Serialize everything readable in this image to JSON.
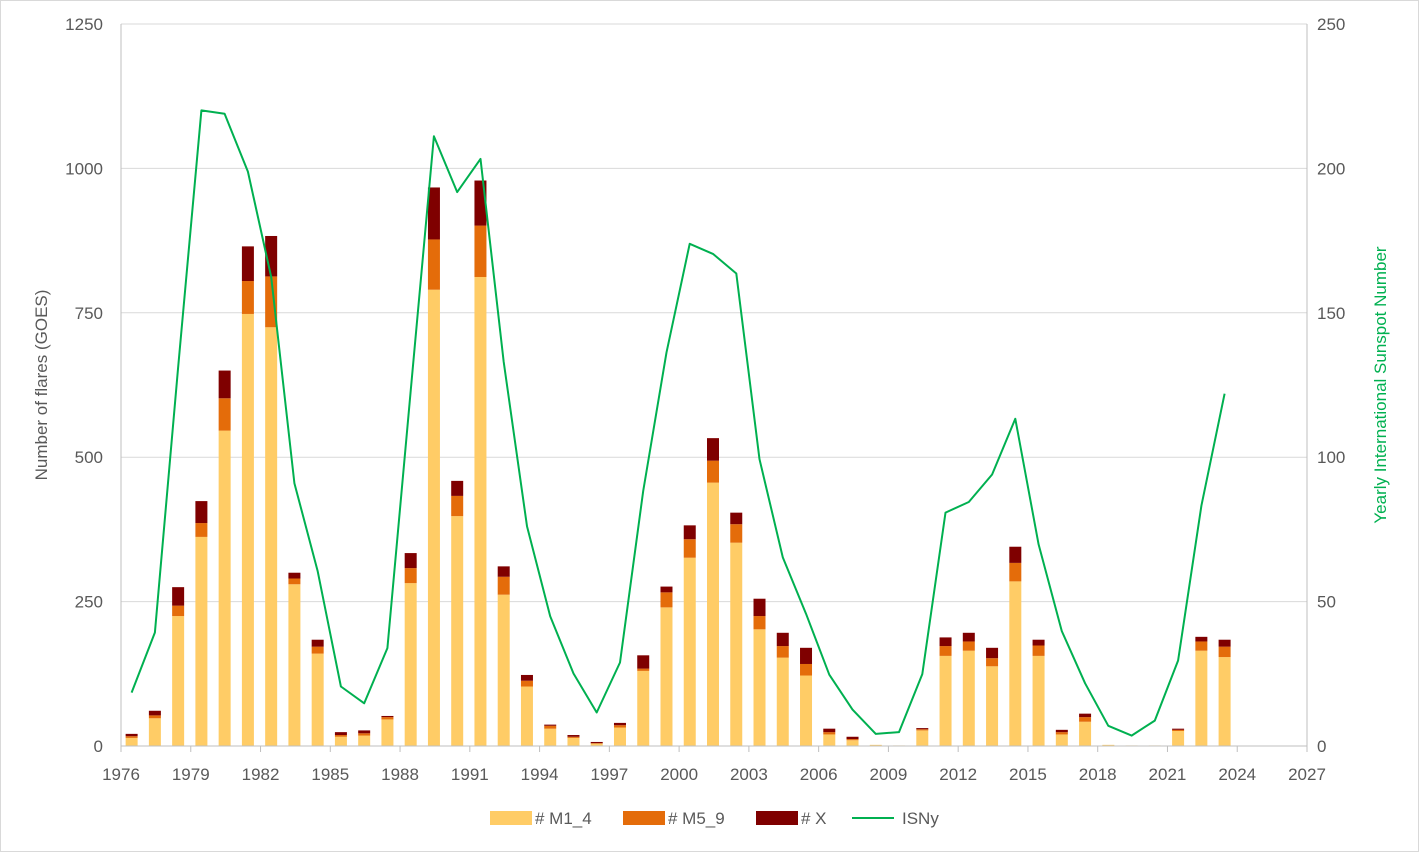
{
  "chart_data": {
    "type": "bar",
    "subtype": "stacked bar with line on secondary axis",
    "title": "",
    "xlabel": "",
    "ylabel": "Number of flares (GOES)",
    "y2label": "Yearly International Sunspot Number",
    "xlim": [
      1976,
      2027
    ],
    "x_ticks": [
      "1976",
      "1979",
      "1982",
      "1985",
      "1988",
      "1991",
      "1994",
      "1997",
      "2000",
      "2003",
      "2006",
      "2009",
      "2012",
      "2015",
      "2018",
      "2021",
      "2024",
      "2027"
    ],
    "ylim": [
      0,
      1250
    ],
    "y_ticks": [
      "0",
      "250",
      "500",
      "750",
      "1000",
      "1250"
    ],
    "y2lim": [
      0,
      250
    ],
    "y2_ticks": [
      "0",
      "50",
      "100",
      "150",
      "200",
      "250"
    ],
    "grid": "horizontal",
    "legend_position": "bottom",
    "years": [
      1976,
      1977,
      1978,
      1979,
      1980,
      1981,
      1982,
      1983,
      1984,
      1985,
      1986,
      1987,
      1988,
      1989,
      1990,
      1991,
      1992,
      1993,
      1994,
      1995,
      1996,
      1997,
      1998,
      1999,
      2000,
      2001,
      2002,
      2003,
      2004,
      2005,
      2006,
      2007,
      2008,
      2009,
      2010,
      2011,
      2012,
      2013,
      2014,
      2015,
      2016,
      2017,
      2018,
      2019,
      2020,
      2021,
      2022,
      2023
    ],
    "series": [
      {
        "name": "# M1_4",
        "type": "bar",
        "color": "#ffcc66",
        "values": [
          14,
          48,
          225,
          362,
          546,
          748,
          725,
          280,
          160,
          16,
          18,
          46,
          282,
          790,
          398,
          812,
          262,
          103,
          30,
          14,
          4,
          32,
          130,
          240,
          326,
          456,
          352,
          202,
          153,
          122,
          20,
          10,
          2,
          1,
          27,
          156,
          165,
          138,
          285,
          156,
          20,
          42,
          2,
          1,
          1,
          26,
          165,
          154
        ]
      },
      {
        "name": "# M5_9",
        "type": "bar",
        "color": "#e46c0a",
        "values": [
          3,
          5,
          18,
          24,
          56,
          57,
          88,
          10,
          12,
          3,
          4,
          4,
          26,
          87,
          35,
          89,
          31,
          10,
          5,
          2,
          1,
          4,
          4,
          26,
          32,
          38,
          32,
          23,
          20,
          20,
          4,
          2,
          0,
          0,
          2,
          17,
          16,
          14,
          32,
          18,
          4,
          8,
          0,
          0,
          0,
          2,
          16,
          18
        ]
      },
      {
        "name": "# X",
        "type": "bar",
        "color": "#7f0000",
        "values": [
          4,
          8,
          32,
          38,
          48,
          60,
          70,
          10,
          12,
          5,
          5,
          2,
          26,
          90,
          26,
          78,
          18,
          10,
          2,
          3,
          2,
          4,
          23,
          10,
          24,
          39,
          20,
          30,
          23,
          28,
          6,
          4,
          0,
          0,
          2,
          15,
          15,
          18,
          28,
          10,
          4,
          6,
          0,
          0,
          0,
          2,
          8,
          12
        ]
      },
      {
        "name": "ISNy",
        "type": "line",
        "axis": "secondary",
        "color": "#00b050",
        "values": [
          18.5,
          39.3,
          131.0,
          220.1,
          218.9,
          198.9,
          162.4,
          91.0,
          60.5,
          20.6,
          14.8,
          33.9,
          123.0,
          211.1,
          191.8,
          203.3,
          133.0,
          76.1,
          44.9,
          25.1,
          11.6,
          28.9,
          88.3,
          136.3,
          173.9,
          170.4,
          163.6,
          99.3,
          65.3,
          45.8,
          24.7,
          12.6,
          4.2,
          4.8,
          24.9,
          80.8,
          84.5,
          94.0,
          113.3,
          69.8,
          39.8,
          21.7,
          7.0,
          3.6,
          8.8,
          29.6,
          83.2,
          122.0
        ]
      }
    ]
  }
}
